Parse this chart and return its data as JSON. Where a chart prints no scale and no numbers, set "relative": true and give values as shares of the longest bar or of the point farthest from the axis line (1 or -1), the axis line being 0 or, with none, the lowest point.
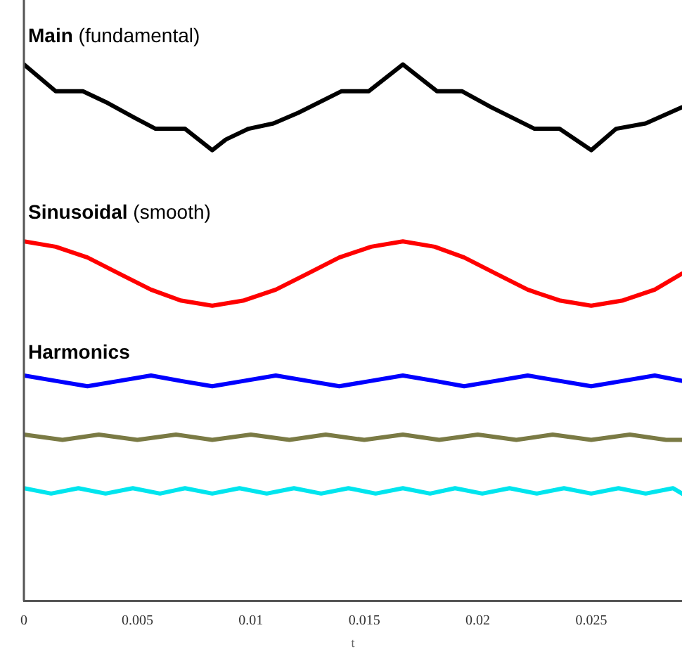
{
  "chart_data": {
    "type": "line",
    "relative": true,
    "xlabel": "t",
    "xlim": [
      0,
      0.029
    ],
    "xticks": [
      0,
      0.005,
      0.01,
      0.015,
      0.02,
      0.025
    ],
    "grid": false,
    "legend": false,
    "marker": "none",
    "line_style": "solid",
    "annotations": [
      "Harmonics"
    ],
    "series": [
      {
        "name": "Main (fundamental)",
        "color": "#000000",
        "x": [
          0,
          0.0014,
          0.0026,
          0.0036,
          0.0049,
          0.0058,
          0.0071,
          0.0083,
          0.0089,
          0.0099,
          0.011,
          0.0121,
          0.014,
          0.0152,
          0.0167,
          0.0182,
          0.0193,
          0.0206,
          0.0225,
          0.0236,
          0.025,
          0.0261,
          0.0274,
          0.029
        ],
        "values": [
          1.0,
          0.95,
          0.95,
          0.93,
          0.9,
          0.88,
          0.88,
          0.84,
          0.86,
          0.88,
          0.89,
          0.91,
          0.95,
          0.95,
          1.0,
          0.95,
          0.95,
          0.92,
          0.88,
          0.88,
          0.84,
          0.88,
          0.89,
          0.92
        ]
      },
      {
        "name": "Sinusoidal (smooth)",
        "color": "#ff0000",
        "x": [
          0,
          0.0014,
          0.0028,
          0.0042,
          0.0056,
          0.0069,
          0.0083,
          0.0097,
          0.0111,
          0.0125,
          0.0139,
          0.0153,
          0.0167,
          0.0181,
          0.0194,
          0.0208,
          0.0222,
          0.0236,
          0.025,
          0.0264,
          0.0278,
          0.029
        ],
        "values": [
          0.67,
          0.66,
          0.64,
          0.61,
          0.58,
          0.56,
          0.55,
          0.56,
          0.58,
          0.61,
          0.64,
          0.66,
          0.67,
          0.66,
          0.64,
          0.61,
          0.58,
          0.56,
          0.55,
          0.56,
          0.58,
          0.61
        ]
      },
      {
        "color": "#0000ff",
        "x": [
          0,
          0.0014,
          0.0028,
          0.0042,
          0.0056,
          0.0069,
          0.0083,
          0.0097,
          0.0111,
          0.0125,
          0.0139,
          0.0153,
          0.0167,
          0.0181,
          0.0194,
          0.0208,
          0.0222,
          0.0236,
          0.025,
          0.0264,
          0.0278,
          0.029
        ],
        "values": [
          0.42,
          0.41,
          0.4,
          0.41,
          0.42,
          0.41,
          0.4,
          0.41,
          0.42,
          0.41,
          0.4,
          0.41,
          0.42,
          0.41,
          0.4,
          0.41,
          0.42,
          0.41,
          0.4,
          0.41,
          0.42,
          0.41
        ]
      },
      {
        "color": "#7a7a44",
        "x": [
          0,
          0.0017,
          0.0033,
          0.005,
          0.0067,
          0.0083,
          0.01,
          0.0117,
          0.0133,
          0.015,
          0.0167,
          0.0183,
          0.02,
          0.0217,
          0.0233,
          0.025,
          0.0267,
          0.0283,
          0.029
        ],
        "values": [
          0.31,
          0.3,
          0.31,
          0.3,
          0.31,
          0.3,
          0.31,
          0.3,
          0.31,
          0.3,
          0.31,
          0.3,
          0.31,
          0.3,
          0.31,
          0.3,
          0.31,
          0.3,
          0.3
        ]
      },
      {
        "color": "#00e5ee",
        "x": [
          0,
          0.0012,
          0.0024,
          0.0036,
          0.0048,
          0.006,
          0.0071,
          0.0083,
          0.0095,
          0.0107,
          0.0119,
          0.0131,
          0.0143,
          0.0155,
          0.0167,
          0.0179,
          0.019,
          0.0202,
          0.0214,
          0.0226,
          0.0238,
          0.025,
          0.0262,
          0.0274,
          0.0286,
          0.029
        ],
        "values": [
          0.21,
          0.2,
          0.21,
          0.2,
          0.21,
          0.2,
          0.21,
          0.2,
          0.21,
          0.2,
          0.21,
          0.2,
          0.21,
          0.2,
          0.21,
          0.2,
          0.21,
          0.2,
          0.21,
          0.2,
          0.21,
          0.2,
          0.21,
          0.2,
          0.21,
          0.2
        ]
      }
    ]
  }
}
